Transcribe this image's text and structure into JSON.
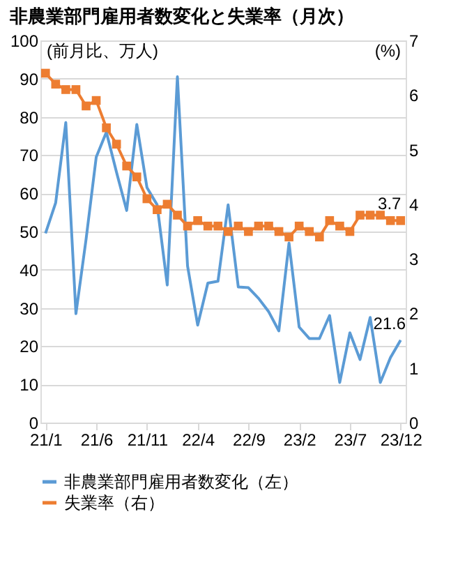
{
  "chart_data": {
    "type": "line",
    "title": "非農業部門雇用者数変化と失業率（月次）",
    "categories": [
      "21/1",
      null,
      null,
      null,
      null,
      "21/6",
      null,
      null,
      null,
      null,
      "21/11",
      null,
      null,
      null,
      null,
      "22/4",
      null,
      null,
      null,
      null,
      "22/9",
      null,
      null,
      null,
      null,
      "23/2",
      null,
      null,
      null,
      null,
      "23/7",
      null,
      null,
      null,
      null,
      "23/12"
    ],
    "series": [
      {
        "name": "非農業部門雇用者数変化（左）",
        "color": "#5b9bd5",
        "marker": "none",
        "values": [
          49.5,
          57.5,
          78.5,
          28.5,
          48,
          69.5,
          76,
          65.5,
          55.5,
          78,
          61.5,
          57,
          36,
          90.5,
          41,
          25.5,
          36.5,
          37,
          57,
          35.5,
          35.3,
          32.5,
          29,
          24,
          47,
          25,
          22,
          22,
          28,
          10.5,
          23.5,
          16.5,
          27.5,
          10.5,
          17,
          21.6
        ],
        "value_labels": [
          null,
          null,
          null,
          null,
          null,
          null,
          null,
          null,
          null,
          null,
          null,
          null,
          null,
          null,
          null,
          null,
          null,
          null,
          null,
          null,
          null,
          null,
          null,
          null,
          null,
          null,
          null,
          null,
          null,
          null,
          null,
          null,
          null,
          null,
          null,
          "21.6"
        ]
      },
      {
        "name": "失業率（右）",
        "color": "#ed7d31",
        "marker": "square",
        "axis": "y2",
        "values": [
          6.4,
          6.2,
          6.1,
          6.1,
          5.8,
          5.9,
          5.4,
          5.1,
          4.7,
          4.5,
          4.1,
          3.9,
          4.0,
          3.8,
          3.6,
          3.7,
          3.6,
          3.6,
          3.5,
          3.6,
          3.5,
          3.6,
          3.6,
          3.5,
          3.4,
          3.6,
          3.5,
          3.4,
          3.7,
          3.6,
          3.5,
          3.8,
          3.8,
          3.8,
          3.7,
          3.7
        ],
        "value_labels": [
          null,
          null,
          null,
          null,
          null,
          null,
          null,
          null,
          null,
          null,
          null,
          null,
          null,
          null,
          null,
          null,
          null,
          null,
          null,
          null,
          null,
          null,
          null,
          null,
          null,
          null,
          null,
          null,
          null,
          null,
          null,
          null,
          null,
          null,
          null,
          "3.7"
        ]
      }
    ],
    "ylabel": "(前月比、万人)",
    "y2label": "(%)",
    "ylim": [
      0,
      100
    ],
    "yticks": [
      0,
      10,
      20,
      30,
      40,
      50,
      60,
      70,
      80,
      90,
      100
    ],
    "y2lim": [
      0,
      7
    ],
    "y2ticks": [
      0,
      1,
      2,
      3,
      4,
      5,
      6,
      7
    ],
    "grid": "y",
    "legend": "bottom"
  }
}
